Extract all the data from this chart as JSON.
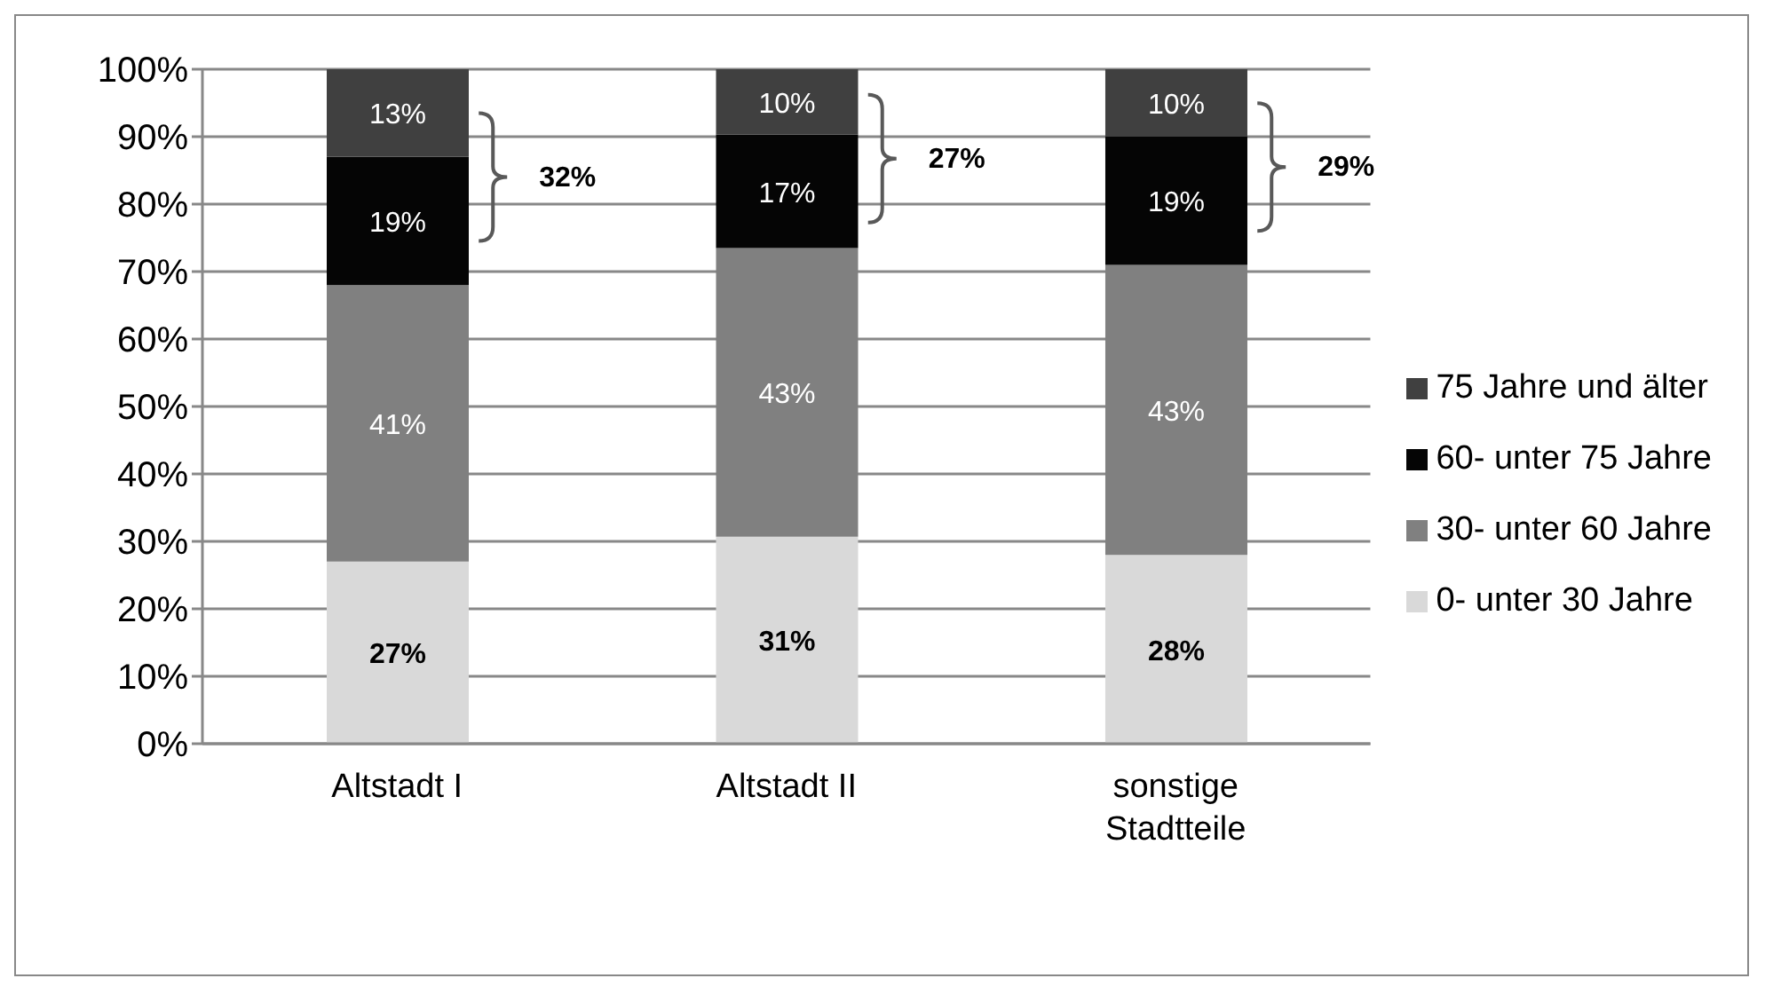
{
  "chart_data": {
    "type": "bar",
    "stacked": true,
    "categories": [
      "Altstadt I",
      "Altstadt II",
      "sonstige Stadtteile"
    ],
    "series": [
      {
        "name": "0- unter 30 Jahre",
        "color": "#d9d9d9",
        "values": [
          27,
          30.7,
          28
        ],
        "value_labels": [
          "27%",
          "31%",
          "28%"
        ]
      },
      {
        "name": "30- unter 60 Jahre",
        "color": "#808080",
        "values": [
          41,
          42.8,
          43
        ],
        "value_labels": [
          "41%",
          "43%",
          "43%"
        ]
      },
      {
        "name": "60- unter 75 Jahre",
        "color": "#050505",
        "values": [
          19,
          16.8,
          19
        ],
        "value_labels": [
          "19%",
          "17%",
          "19%"
        ]
      },
      {
        "name": "75 Jahre und älter",
        "color": "#404040",
        "values": [
          13,
          9.7,
          10
        ],
        "value_labels": [
          "13%",
          "10%",
          "10%"
        ]
      }
    ],
    "ylim": [
      0,
      100
    ],
    "yticks": [
      {
        "value": 0,
        "label": "0%"
      },
      {
        "value": 10,
        "label": "10%"
      },
      {
        "value": 20,
        "label": "20%"
      },
      {
        "value": 30,
        "label": "30%"
      },
      {
        "value": 40,
        "label": "40%"
      },
      {
        "value": 50,
        "label": "50%"
      },
      {
        "value": 60,
        "label": "60%"
      },
      {
        "value": 70,
        "label": "70%"
      },
      {
        "value": 80,
        "label": "80%"
      },
      {
        "value": 90,
        "label": "90%"
      },
      {
        "value": 100,
        "label": "100%"
      }
    ],
    "grid": "y",
    "legend": "right",
    "annotations": [
      "32%",
      "27%",
      "29%"
    ]
  }
}
